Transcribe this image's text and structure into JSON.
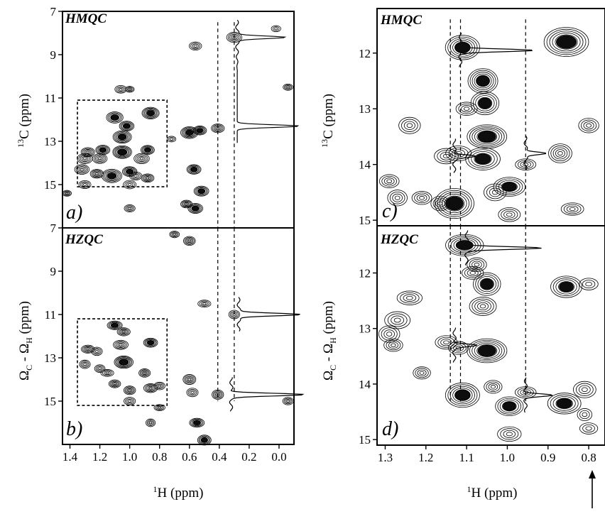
{
  "colors": {
    "ink": "#000000",
    "background": "#ffffff"
  },
  "chart_data": [
    {
      "type": "scatter",
      "experiment": "HMQC",
      "panel_label": "a)",
      "xlabel": "",
      "ylabel_sup": "13",
      "ylabel_rest": "C (ppm)",
      "xlim": [
        1.45,
        -0.1
      ],
      "ylim": [
        7,
        17
      ],
      "x_ticks": [],
      "y_ticks": [
        7,
        9,
        11,
        13,
        15
      ],
      "dashed_box": {
        "x": [
          1.35,
          0.75
        ],
        "y": [
          11.1,
          15.1
        ]
      },
      "dashed_guides_x": [
        0.41,
        0.3
      ],
      "slices": [
        {
          "baseline_x": 0.28,
          "peaks": [
            {
              "y": 8.2,
              "height": 0.22
            },
            {
              "y": 12.3,
              "height": 0.27
            }
          ]
        }
      ],
      "peaks": [
        {
          "x": 1.42,
          "y": 15.4,
          "i": 0.3
        },
        {
          "x": 1.06,
          "y": 10.6,
          "i": 0.3
        },
        {
          "x": 1.0,
          "y": 10.6,
          "i": 0.3
        },
        {
          "x": 1.1,
          "y": 11.9,
          "i": 0.7
        },
        {
          "x": 0.86,
          "y": 11.7,
          "i": 0.8
        },
        {
          "x": 1.02,
          "y": 12.3,
          "i": 0.6
        },
        {
          "x": 1.05,
          "y": 12.8,
          "i": 0.8
        },
        {
          "x": 1.05,
          "y": 13.5,
          "i": 1.0
        },
        {
          "x": 1.18,
          "y": 13.4,
          "i": 0.6
        },
        {
          "x": 1.28,
          "y": 13.5,
          "i": 0.5
        },
        {
          "x": 1.3,
          "y": 13.8,
          "i": 0.5
        },
        {
          "x": 1.2,
          "y": 13.8,
          "i": 0.5
        },
        {
          "x": 0.88,
          "y": 13.4,
          "i": 0.6
        },
        {
          "x": 0.92,
          "y": 13.8,
          "i": 0.5
        },
        {
          "x": 1.32,
          "y": 14.3,
          "i": 0.5
        },
        {
          "x": 1.22,
          "y": 14.5,
          "i": 0.5
        },
        {
          "x": 1.12,
          "y": 14.6,
          "i": 0.8
        },
        {
          "x": 1.0,
          "y": 14.4,
          "i": 0.6
        },
        {
          "x": 0.96,
          "y": 14.6,
          "i": 0.4
        },
        {
          "x": 0.88,
          "y": 14.7,
          "i": 0.5
        },
        {
          "x": 1.0,
          "y": 15.0,
          "i": 0.4
        },
        {
          "x": 1.3,
          "y": 15.0,
          "i": 0.4
        },
        {
          "x": 0.56,
          "y": 8.6,
          "i": 0.4
        },
        {
          "x": 0.6,
          "y": 12.6,
          "i": 0.8
        },
        {
          "x": 0.53,
          "y": 12.5,
          "i": 0.6
        },
        {
          "x": 0.57,
          "y": 14.3,
          "i": 0.6
        },
        {
          "x": 0.52,
          "y": 15.3,
          "i": 0.6
        },
        {
          "x": 0.62,
          "y": 15.9,
          "i": 0.5
        },
        {
          "x": 0.56,
          "y": 16.1,
          "i": 0.7
        },
        {
          "x": 0.41,
          "y": 12.4,
          "i": 0.5
        },
        {
          "x": 0.3,
          "y": 8.2,
          "i": 0.5
        },
        {
          "x": 0.02,
          "y": 7.8,
          "i": 0.2
        },
        {
          "x": -0.06,
          "y": 10.5,
          "i": 0.3
        },
        {
          "x": 0.72,
          "y": 12.9,
          "i": 0.2
        },
        {
          "x": 1.0,
          "y": 16.1,
          "i": 0.4
        }
      ]
    },
    {
      "type": "scatter",
      "experiment": "HZQC",
      "panel_label": "b)",
      "xlabel_sup": "1",
      "xlabel_rest": "H (ppm)",
      "ylabel_main": "Ω",
      "ylabel_sub1": "C",
      "ylabel_mid": " - Ω",
      "ylabel_sub2": "H",
      "ylabel_end": " (ppm)",
      "xlim": [
        1.45,
        -0.1
      ],
      "ylim": [
        7,
        17
      ],
      "x_ticks": [
        "1.4",
        "1.2",
        "1.0",
        "0.8",
        "0.6",
        "0.4",
        "0.2",
        "0.0"
      ],
      "y_ticks": [
        7,
        9,
        11,
        13,
        15
      ],
      "dashed_box": {
        "x": [
          1.35,
          0.75
        ],
        "y": [
          11.2,
          15.2
        ]
      },
      "dashed_guides_x": [
        0.41,
        0.3
      ],
      "slices": [
        {
          "baseline_x": 0.27,
          "peaks": [
            {
              "y": 11.0,
              "height": 0.28
            }
          ]
        },
        {
          "baseline_x": 0.32,
          "peaks": [
            {
              "y": 14.7,
              "height": 0.32
            }
          ]
        }
      ],
      "peaks": [
        {
          "x": 0.7,
          "y": 7.3,
          "i": 0.3
        },
        {
          "x": 0.6,
          "y": 7.6,
          "i": 0.5
        },
        {
          "x": 0.5,
          "y": 10.5,
          "i": 0.4
        },
        {
          "x": 1.1,
          "y": 11.5,
          "i": 0.6
        },
        {
          "x": 1.04,
          "y": 11.8,
          "i": 0.5
        },
        {
          "x": 1.06,
          "y": 12.4,
          "i": 0.5
        },
        {
          "x": 1.28,
          "y": 12.6,
          "i": 0.5
        },
        {
          "x": 1.22,
          "y": 12.7,
          "i": 0.4
        },
        {
          "x": 0.86,
          "y": 12.3,
          "i": 0.6
        },
        {
          "x": 1.04,
          "y": 13.2,
          "i": 1.0
        },
        {
          "x": 1.3,
          "y": 13.3,
          "i": 0.4
        },
        {
          "x": 1.2,
          "y": 13.5,
          "i": 0.4
        },
        {
          "x": 1.15,
          "y": 13.7,
          "i": 0.4
        },
        {
          "x": 0.9,
          "y": 13.7,
          "i": 0.5
        },
        {
          "x": 1.1,
          "y": 14.2,
          "i": 0.5
        },
        {
          "x": 1.0,
          "y": 14.5,
          "i": 0.5
        },
        {
          "x": 0.86,
          "y": 14.4,
          "i": 0.5
        },
        {
          "x": 0.8,
          "y": 14.3,
          "i": 0.4
        },
        {
          "x": 1.0,
          "y": 15.0,
          "i": 0.4
        },
        {
          "x": 0.6,
          "y": 14.0,
          "i": 0.5
        },
        {
          "x": 0.58,
          "y": 14.6,
          "i": 0.4
        },
        {
          "x": 0.55,
          "y": 16.0,
          "i": 0.6
        },
        {
          "x": 0.5,
          "y": 16.8,
          "i": 0.6
        },
        {
          "x": 0.41,
          "y": 14.7,
          "i": 0.5
        },
        {
          "x": 0.3,
          "y": 11.0,
          "i": 0.4
        },
        {
          "x": -0.06,
          "y": 15.0,
          "i": 0.3
        },
        {
          "x": 0.86,
          "y": 16.0,
          "i": 0.3
        },
        {
          "x": 0.8,
          "y": 15.3,
          "i": 0.3
        }
      ]
    },
    {
      "type": "scatter",
      "experiment": "HMQC",
      "panel_label": "c)",
      "xlabel": "",
      "ylabel_sup": "13",
      "ylabel_rest": "C (ppm)",
      "xlim": [
        1.32,
        0.76
      ],
      "ylim": [
        11.2,
        15.1
      ],
      "x_ticks": [],
      "y_ticks": [
        12,
        13,
        14,
        15
      ],
      "dashed_guides_x": [
        1.14,
        1.115,
        0.955
      ],
      "slices": [
        {
          "baseline_x": 1.115,
          "peaks": [
            {
              "y": 11.95,
              "height": 0.32
            }
          ]
        },
        {
          "baseline_x": 1.13,
          "peaks": [
            {
              "y": 13.85,
              "height": 0.1
            }
          ]
        },
        {
          "baseline_x": 0.955,
          "peaks": [
            {
              "y": 13.8,
              "height": 0.1
            }
          ]
        }
      ],
      "peaks": [
        {
          "x": 1.11,
          "y": 11.9,
          "i": 0.9
        },
        {
          "x": 0.855,
          "y": 11.8,
          "i": 1.0
        },
        {
          "x": 1.06,
          "y": 12.5,
          "i": 0.8
        },
        {
          "x": 1.055,
          "y": 12.9,
          "i": 0.7
        },
        {
          "x": 1.05,
          "y": 13.5,
          "i": 1.0
        },
        {
          "x": 1.06,
          "y": 13.9,
          "i": 0.7
        },
        {
          "x": 1.24,
          "y": 13.3,
          "i": 0.4
        },
        {
          "x": 0.8,
          "y": 13.3,
          "i": 0.3
        },
        {
          "x": 1.15,
          "y": 13.85,
          "i": 0.4
        },
        {
          "x": 1.12,
          "y": 13.8,
          "i": 0.4
        },
        {
          "x": 0.87,
          "y": 13.8,
          "i": 0.5
        },
        {
          "x": 0.955,
          "y": 14.0,
          "i": 0.3
        },
        {
          "x": 1.29,
          "y": 14.3,
          "i": 0.4
        },
        {
          "x": 1.27,
          "y": 14.6,
          "i": 0.4
        },
        {
          "x": 1.21,
          "y": 14.6,
          "i": 0.3
        },
        {
          "x": 1.13,
          "y": 14.7,
          "i": 1.0
        },
        {
          "x": 1.03,
          "y": 14.5,
          "i": 0.4
        },
        {
          "x": 0.995,
          "y": 14.4,
          "i": 0.6
        },
        {
          "x": 0.995,
          "y": 14.9,
          "i": 0.4
        },
        {
          "x": 0.84,
          "y": 14.8,
          "i": 0.3
        },
        {
          "x": 1.165,
          "y": 14.7,
          "i": 0.3
        },
        {
          "x": 1.1,
          "y": 13.0,
          "i": 0.3
        }
      ]
    },
    {
      "type": "scatter",
      "experiment": "HZQC",
      "panel_label": "d)",
      "xlabel_sup": "1",
      "xlabel_rest": "H (ppm)",
      "ylabel_main": "Ω",
      "ylabel_sub1": "C",
      "ylabel_mid": " - Ω",
      "ylabel_sub2": "H",
      "ylabel_end": " (ppm)",
      "xlim": [
        1.32,
        0.76
      ],
      "ylim": [
        11.15,
        15.1
      ],
      "x_ticks": [
        "1.3",
        "1.2",
        "1.1",
        "1.0",
        "0.9",
        "0.8"
      ],
      "y_ticks": [
        12,
        13,
        14,
        15
      ],
      "dashed_guides_x": [
        1.14,
        1.115,
        0.955
      ],
      "slices": [
        {
          "baseline_x": 1.1,
          "peaks": [
            {
              "y": 11.55,
              "height": 0.33
            }
          ]
        },
        {
          "baseline_x": 1.13,
          "peaks": [
            {
              "y": 13.3,
              "height": 0.1
            }
          ]
        },
        {
          "baseline_x": 0.955,
          "peaks": [
            {
              "y": 14.2,
              "height": 0.11
            }
          ]
        }
      ],
      "peaks": [
        {
          "x": 1.105,
          "y": 11.5,
          "i": 0.8
        },
        {
          "x": 1.075,
          "y": 11.85,
          "i": 0.4
        },
        {
          "x": 1.05,
          "y": 12.2,
          "i": 0.7
        },
        {
          "x": 1.06,
          "y": 12.6,
          "i": 0.5
        },
        {
          "x": 0.855,
          "y": 12.25,
          "i": 0.7
        },
        {
          "x": 1.24,
          "y": 12.45,
          "i": 0.4
        },
        {
          "x": 1.27,
          "y": 12.85,
          "i": 0.4
        },
        {
          "x": 1.05,
          "y": 13.4,
          "i": 1.0
        },
        {
          "x": 1.29,
          "y": 13.1,
          "i": 0.4
        },
        {
          "x": 1.28,
          "y": 13.3,
          "i": 0.3
        },
        {
          "x": 1.15,
          "y": 13.25,
          "i": 0.3
        },
        {
          "x": 1.12,
          "y": 13.35,
          "i": 0.3
        },
        {
          "x": 1.21,
          "y": 13.8,
          "i": 0.3
        },
        {
          "x": 1.11,
          "y": 14.2,
          "i": 0.8
        },
        {
          "x": 1.035,
          "y": 14.05,
          "i": 0.3
        },
        {
          "x": 0.995,
          "y": 14.4,
          "i": 0.6
        },
        {
          "x": 0.955,
          "y": 14.15,
          "i": 0.3
        },
        {
          "x": 0.86,
          "y": 14.35,
          "i": 0.7
        },
        {
          "x": 0.81,
          "y": 14.1,
          "i": 0.4
        },
        {
          "x": 0.995,
          "y": 14.9,
          "i": 0.4
        },
        {
          "x": 0.81,
          "y": 14.55,
          "i": 0.2
        },
        {
          "x": 0.8,
          "y": 14.8,
          "i": 0.2
        },
        {
          "x": 0.8,
          "y": 12.2,
          "i": 0.2
        },
        {
          "x": 1.085,
          "y": 12.0,
          "i": 0.3
        }
      ]
    }
  ]
}
